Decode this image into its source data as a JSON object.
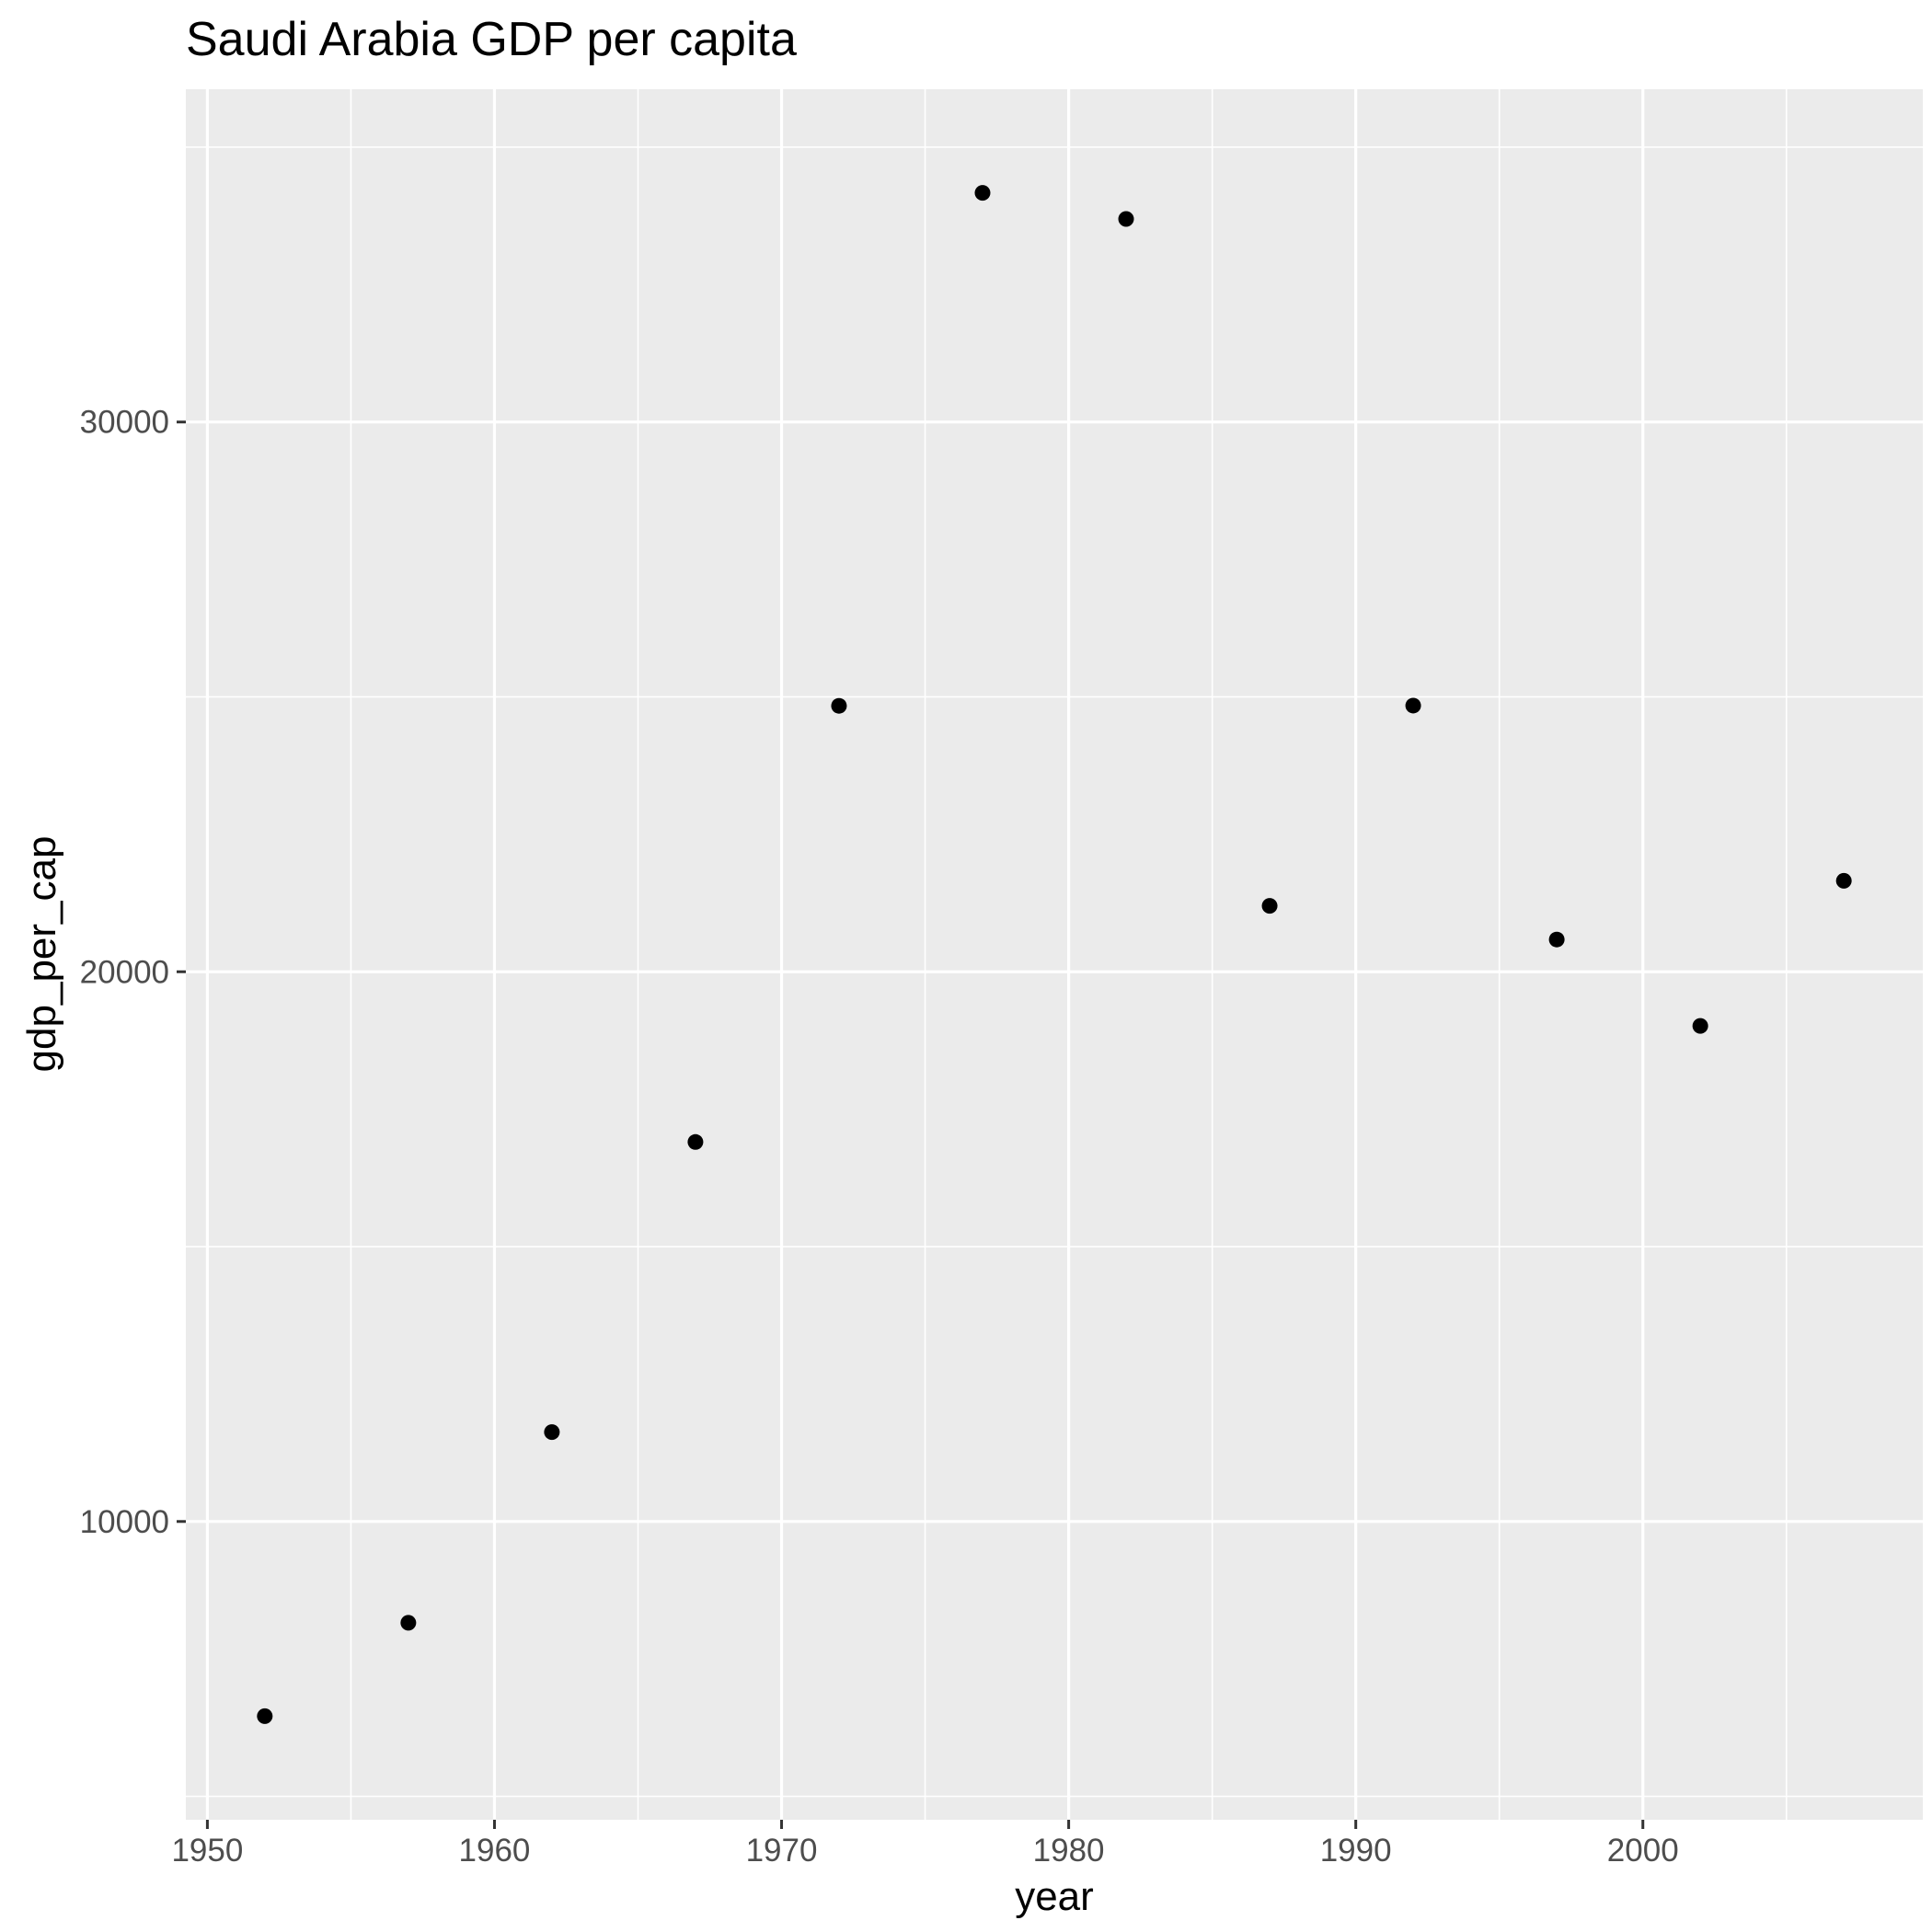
{
  "chart_data": {
    "type": "scatter",
    "title": "Saudi Arabia GDP per capita",
    "subtitle": "",
    "xlabel": "year",
    "ylabel": "gdp_per_cap",
    "x": [
      1952,
      1957,
      1962,
      1967,
      1972,
      1977,
      1982,
      1987,
      1992,
      1997,
      2002,
      2007
    ],
    "y": [
      6459.6,
      8157.6,
      11626.4,
      16903.0,
      24837.4,
      34168.0,
      33693.2,
      21198.3,
      24841.6,
      20586.7,
      19014.5,
      21654.8
    ],
    "xlim": [
      1949.25,
      2009.75
    ],
    "ylim": [
      4574.3,
      36053.3
    ],
    "x_ticks": [
      {
        "value": 1950,
        "label": "1950"
      },
      {
        "value": 1960,
        "label": "1960"
      },
      {
        "value": 1970,
        "label": "1970"
      },
      {
        "value": 1980,
        "label": "1980"
      },
      {
        "value": 1990,
        "label": "1990"
      },
      {
        "value": 2000,
        "label": "2000"
      }
    ],
    "x_minor_ticks": [
      1955,
      1965,
      1975,
      1985,
      1995,
      2005
    ],
    "y_ticks": [
      {
        "value": 10000,
        "label": "10000"
      },
      {
        "value": 20000,
        "label": "20000"
      },
      {
        "value": 30000,
        "label": "30000"
      }
    ],
    "y_minor_ticks": [
      5000,
      15000,
      25000,
      35000
    ],
    "grid": true,
    "legend": "none",
    "colors": {
      "panel_background": "#ebebeb",
      "grid_line": "#ffffff",
      "point": "#000000",
      "tick_mark": "#333333",
      "tick_label": "#4d4d4d",
      "text": "#000000"
    }
  }
}
